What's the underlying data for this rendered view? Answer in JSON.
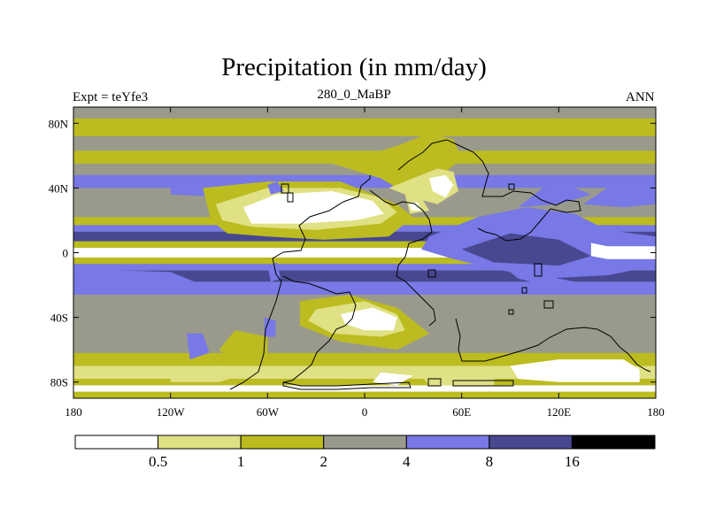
{
  "chart_data": {
    "type": "contour-map",
    "title": "Precipitation (in mm/day)",
    "subtitle_left": "Expt = teYfe3",
    "subtitle_center": "280_0_MaBP",
    "subtitle_right": "ANN",
    "x_ticks": [
      {
        "value": -180,
        "label": "180"
      },
      {
        "value": -120,
        "label": "120W"
      },
      {
        "value": -60,
        "label": "60W"
      },
      {
        "value": 0,
        "label": "0"
      },
      {
        "value": 60,
        "label": "60E"
      },
      {
        "value": 120,
        "label": "120E"
      },
      {
        "value": 180,
        "label": "180"
      }
    ],
    "y_ticks": [
      {
        "value": 80,
        "label": "80N"
      },
      {
        "value": 40,
        "label": "40N"
      },
      {
        "value": 0,
        "label": "0"
      },
      {
        "value": -40,
        "label": "40S"
      },
      {
        "value": -80,
        "label": "80S"
      }
    ],
    "xlim": [
      -180,
      180
    ],
    "ylim": [
      -90,
      90
    ],
    "colorbar": {
      "levels": [
        "0.5",
        "1",
        "2",
        "4",
        "8",
        "16"
      ],
      "colors": [
        "#ffffff",
        "#e0e084",
        "#bcbc20",
        "#9a9a8c",
        "#7878e6",
        "#484890",
        "#000000"
      ]
    },
    "zonal_bands": [
      {
        "from": 90,
        "to": 83,
        "level": 3
      },
      {
        "from": 83,
        "to": 72,
        "level": 2
      },
      {
        "from": 72,
        "to": 63,
        "level": 3
      },
      {
        "from": 63,
        "to": 55,
        "level": 2
      },
      {
        "from": 55,
        "to": 48,
        "level": 3
      },
      {
        "from": 48,
        "to": 40,
        "level": 4
      },
      {
        "from": 40,
        "to": 22,
        "level": 3
      },
      {
        "from": 22,
        "to": 17,
        "level": 2
      },
      {
        "from": 17,
        "to": 13,
        "level": 4
      },
      {
        "from": 13,
        "to": 7,
        "level": 5
      },
      {
        "from": 7,
        "to": 3,
        "level": 2
      },
      {
        "from": 3,
        "to": -3,
        "level": 0
      },
      {
        "from": -3,
        "to": -7,
        "level": 2
      },
      {
        "from": -7,
        "to": -11,
        "level": 4
      },
      {
        "from": -11,
        "to": -18,
        "level": 5
      },
      {
        "from": -18,
        "to": -26,
        "level": 4
      },
      {
        "from": -26,
        "to": -62,
        "level": 3
      },
      {
        "from": -62,
        "to": -70,
        "level": 2
      },
      {
        "from": -70,
        "to": -78,
        "level": 1
      },
      {
        "from": -78,
        "to": -82,
        "level": 2
      },
      {
        "from": -82,
        "to": -86,
        "level": 0
      },
      {
        "from": -86,
        "to": -90,
        "level": 2
      }
    ],
    "regions": [
      {
        "level": 4,
        "points": [
          [
            -180,
            -10
          ],
          [
            -120,
            -12
          ],
          [
            -100,
            -20
          ],
          [
            -140,
            -22
          ],
          [
            -180,
            -22
          ]
        ]
      },
      {
        "level": 4,
        "points": [
          [
            -120,
            40
          ],
          [
            -90,
            42
          ],
          [
            -60,
            38
          ],
          [
            -80,
            34
          ],
          [
            -120,
            36
          ]
        ]
      },
      {
        "level": 2,
        "points": [
          [
            -100,
            40
          ],
          [
            -60,
            44
          ],
          [
            -15,
            44
          ],
          [
            0,
            38
          ],
          [
            20,
            30
          ],
          [
            30,
            22
          ],
          [
            15,
            10
          ],
          [
            -25,
            8
          ],
          [
            -60,
            10
          ],
          [
            -85,
            12
          ],
          [
            -95,
            20
          ]
        ]
      },
      {
        "level": 1,
        "points": [
          [
            -92,
            30
          ],
          [
            -60,
            40
          ],
          [
            -15,
            40
          ],
          [
            10,
            34
          ],
          [
            20,
            25
          ],
          [
            10,
            18
          ],
          [
            -30,
            14
          ],
          [
            -70,
            16
          ],
          [
            -88,
            20
          ]
        ]
      },
      {
        "level": 0,
        "points": [
          [
            -75,
            28
          ],
          [
            -55,
            36
          ],
          [
            -20,
            38
          ],
          [
            5,
            32
          ],
          [
            12,
            24
          ],
          [
            -5,
            20
          ],
          [
            -40,
            18
          ],
          [
            -70,
            18
          ]
        ]
      },
      {
        "level": 2,
        "points": [
          [
            -20,
            55
          ],
          [
            0,
            60
          ],
          [
            20,
            66
          ],
          [
            40,
            74
          ],
          [
            55,
            70
          ],
          [
            60,
            58
          ],
          [
            45,
            46
          ],
          [
            20,
            40
          ],
          [
            10,
            46
          ]
        ]
      },
      {
        "level": 1,
        "points": [
          [
            15,
            40
          ],
          [
            30,
            46
          ],
          [
            45,
            52
          ],
          [
            55,
            50
          ],
          [
            58,
            38
          ],
          [
            45,
            30
          ],
          [
            30,
            34
          ]
        ]
      },
      {
        "level": 0,
        "points": [
          [
            40,
            46
          ],
          [
            50,
            48
          ],
          [
            55,
            42
          ],
          [
            50,
            34
          ],
          [
            42,
            38
          ]
        ]
      },
      {
        "level": 1,
        "points": [
          [
            25,
            36
          ],
          [
            35,
            34
          ],
          [
            40,
            26
          ],
          [
            28,
            24
          ]
        ]
      },
      {
        "level": 0,
        "points": [
          [
            27,
            31
          ],
          [
            33,
            31
          ],
          [
            35,
            26
          ],
          [
            29,
            26
          ]
        ]
      },
      {
        "level": 4,
        "points": [
          [
            40,
            10
          ],
          [
            70,
            22
          ],
          [
            100,
            28
          ],
          [
            130,
            24
          ],
          [
            150,
            14
          ],
          [
            180,
            10
          ],
          [
            180,
            -8
          ],
          [
            150,
            -14
          ],
          [
            110,
            -16
          ],
          [
            80,
            -10
          ],
          [
            55,
            -4
          ],
          [
            35,
            2
          ]
        ]
      },
      {
        "level": 5,
        "points": [
          [
            60,
            2
          ],
          [
            90,
            12
          ],
          [
            120,
            8
          ],
          [
            140,
            -2
          ],
          [
            120,
            -8
          ],
          [
            80,
            -6
          ]
        ]
      },
      {
        "level": 4,
        "points": [
          [
            95,
            28
          ],
          [
            110,
            40
          ],
          [
            120,
            44
          ],
          [
            140,
            36
          ],
          [
            120,
            30
          ]
        ]
      },
      {
        "level": 4,
        "points": [
          [
            135,
            30
          ],
          [
            150,
            40
          ],
          [
            180,
            42
          ],
          [
            180,
            30
          ],
          [
            160,
            28
          ]
        ]
      },
      {
        "level": 0,
        "points": [
          [
            140,
            6
          ],
          [
            150,
            4
          ],
          [
            180,
            4
          ],
          [
            180,
            -4
          ],
          [
            150,
            -4
          ],
          [
            140,
            -2
          ]
        ]
      },
      {
        "level": 4,
        "points": [
          [
            85,
            -8
          ],
          [
            110,
            -14
          ],
          [
            130,
            -18
          ],
          [
            120,
            -22
          ],
          [
            95,
            -16
          ]
        ]
      },
      {
        "level": 2,
        "points": [
          [
            -40,
            -30
          ],
          [
            -10,
            -26
          ],
          [
            20,
            -34
          ],
          [
            40,
            -50
          ],
          [
            20,
            -60
          ],
          [
            -15,
            -55
          ],
          [
            -40,
            -45
          ]
        ]
      },
      {
        "level": 1,
        "points": [
          [
            -30,
            -35
          ],
          [
            0,
            -30
          ],
          [
            20,
            -38
          ],
          [
            25,
            -48
          ],
          [
            10,
            -52
          ],
          [
            -20,
            -50
          ],
          [
            -35,
            -42
          ]
        ]
      },
      {
        "level": 0,
        "points": [
          [
            -15,
            -38
          ],
          [
            5,
            -34
          ],
          [
            20,
            -40
          ],
          [
            18,
            -48
          ],
          [
            0,
            -48
          ],
          [
            -12,
            -44
          ]
        ]
      },
      {
        "level": 2,
        "points": [
          [
            -80,
            -48
          ],
          [
            -60,
            -52
          ],
          [
            -60,
            -66
          ],
          [
            -80,
            -68
          ],
          [
            -90,
            -60
          ]
        ]
      },
      {
        "level": 4,
        "points": [
          [
            -110,
            -50
          ],
          [
            -100,
            -50
          ],
          [
            -96,
            -62
          ],
          [
            -108,
            -66
          ]
        ]
      },
      {
        "level": 4,
        "points": [
          [
            -62,
            -40
          ],
          [
            -55,
            -42
          ],
          [
            -55,
            -52
          ],
          [
            -62,
            -52
          ]
        ]
      },
      {
        "level": 4,
        "points": [
          [
            -60,
            -8
          ],
          [
            -54,
            -6
          ],
          [
            -52,
            -16
          ],
          [
            -58,
            -18
          ]
        ]
      },
      {
        "level": 4,
        "points": [
          [
            -60,
            42
          ],
          [
            -54,
            44
          ],
          [
            -50,
            38
          ],
          [
            -58,
            36
          ]
        ]
      },
      {
        "level": 0,
        "points": [
          [
            90,
            -70
          ],
          [
            120,
            -66
          ],
          [
            160,
            -66
          ],
          [
            170,
            -72
          ],
          [
            170,
            -80
          ],
          [
            120,
            -80
          ],
          [
            95,
            -78
          ]
        ]
      },
      {
        "level": 1,
        "points": [
          [
            30,
            -70
          ],
          [
            60,
            -74
          ],
          [
            80,
            -72
          ],
          [
            80,
            -82
          ],
          [
            40,
            -82
          ]
        ]
      },
      {
        "level": 0,
        "points": [
          [
            10,
            -74
          ],
          [
            30,
            -76
          ],
          [
            20,
            -82
          ],
          [
            5,
            -80
          ]
        ]
      },
      {
        "level": 1,
        "points": [
          [
            -120,
            -72
          ],
          [
            -90,
            -70
          ],
          [
            -70,
            -74
          ],
          [
            -90,
            -80
          ],
          [
            -120,
            -80
          ]
        ]
      }
    ]
  }
}
